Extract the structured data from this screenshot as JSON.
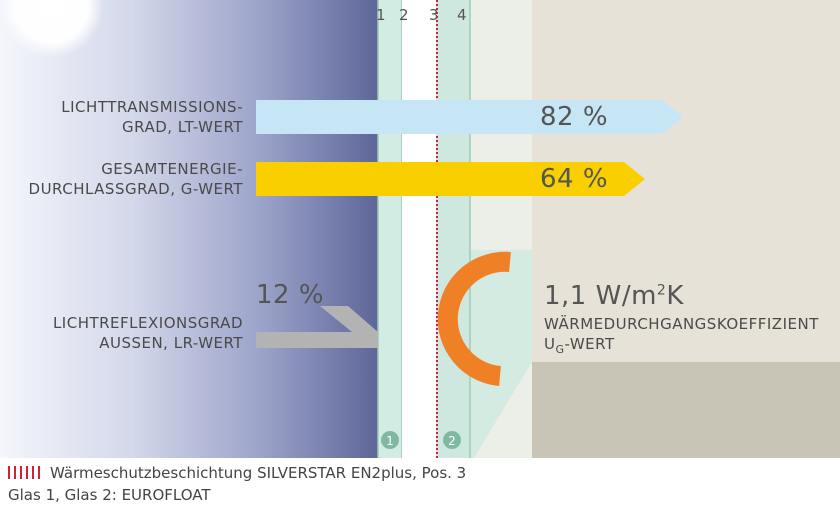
{
  "panes": [
    "1",
    "2",
    "3",
    "4"
  ],
  "bars": {
    "light_transmission": {
      "label_line1": "LICHTTRANSMISSIONS-",
      "label_line2": "GRAD, LT-WERT",
      "value": "82 %"
    },
    "energy_transmission": {
      "label_line1": "GESAMTENERGIE-",
      "label_line2": "DURCHLASSGRAD, G-WERT",
      "value": "64 %"
    },
    "light_reflection": {
      "label_line1": "LICHTREFLEXIONSGRAD",
      "label_line2": "AUSSEN, LR-WERT",
      "value": "12 %"
    }
  },
  "u_value": {
    "value_prefix": "1,1 W/m",
    "value_sup": "2",
    "value_suffix": "K",
    "label_line1": "WÄRMEDURCHGANGSKOEFFIZIENT",
    "label_line2_main": "U",
    "label_line2_sub": "G",
    "label_line2_rest": "-WERT"
  },
  "glass_badges": [
    "1",
    "2"
  ],
  "legend": {
    "line1": "Wärmeschutzbeschichtung SILVERSTAR EN2plus, Pos. 3",
    "line2": "Glas 1, Glas 2: EUROFLOAT"
  },
  "colors": {
    "sky_light": "#f4f6fb",
    "sky_dark": "#5e6699",
    "room_wall": "#e6e2d8",
    "room_floor": "#c9c5b6",
    "glass": "#cfe7e0",
    "lt_bar": "#c6e6f6",
    "g_bar": "#f9cf00",
    "lr_bar": "#b3b3b3",
    "u_arc": "#f08026",
    "coating": "#d0213b"
  }
}
